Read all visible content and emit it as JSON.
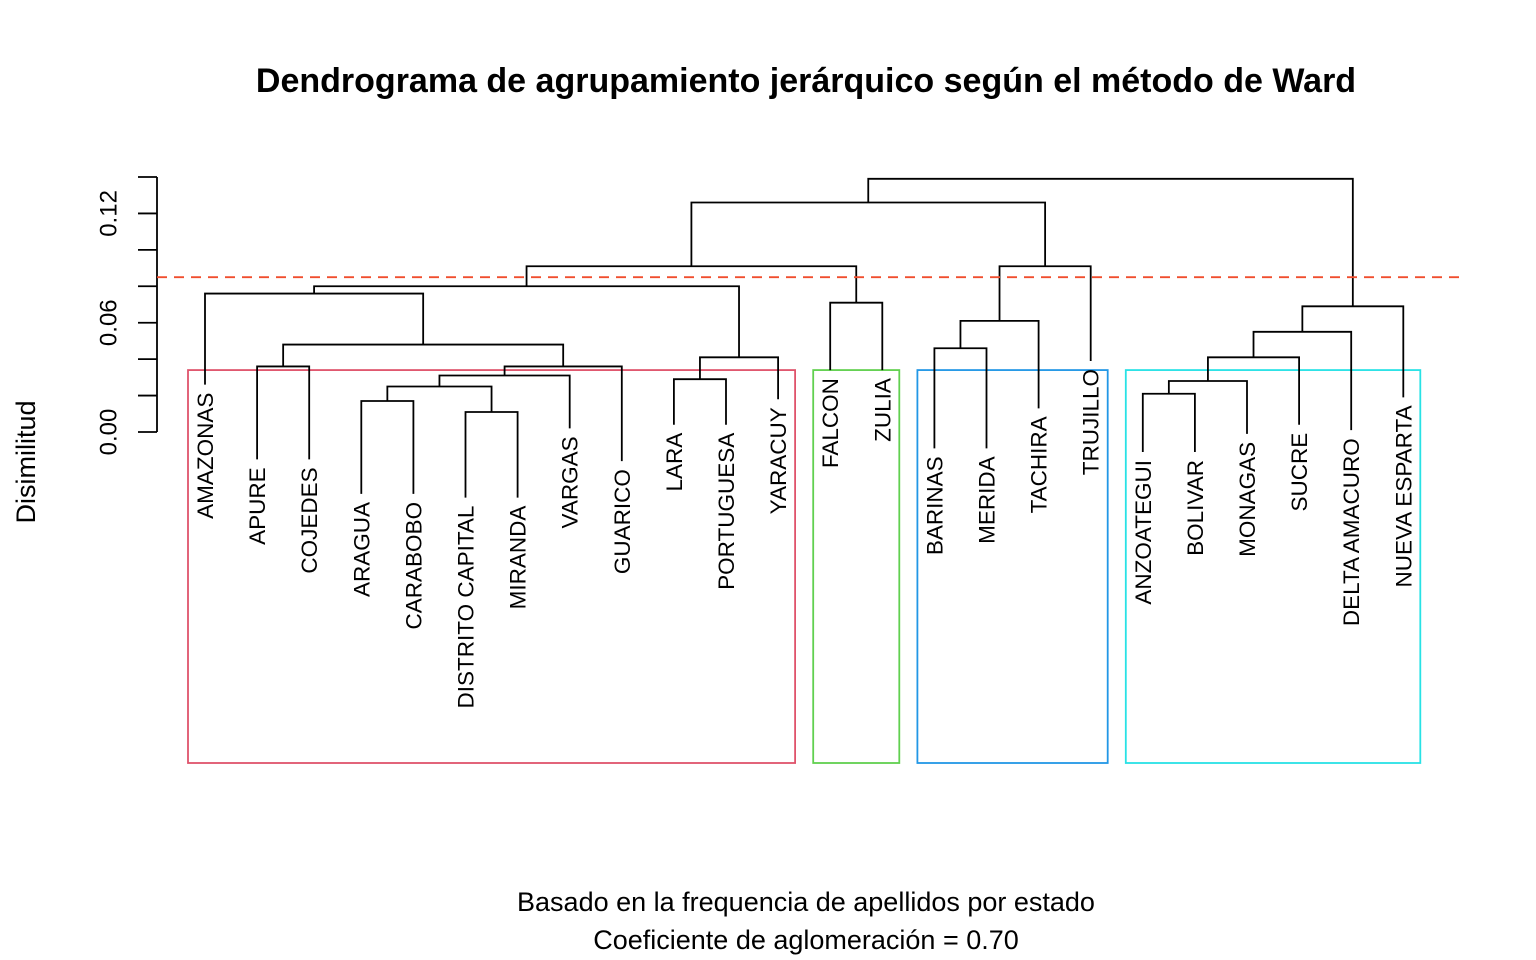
{
  "chart_data": {
    "type": "dendrogram",
    "title": "Dendrograma de agrupamiento jerárquico según el método de Ward",
    "subtitle_lines": [
      "Basado en la frequencia de apellidos por estado",
      "Coeficiente de aglomeración = 0.70"
    ],
    "ylabel": "Disimilitud",
    "yticks": [
      "0.00",
      "0.06",
      "0.12"
    ],
    "yticks_values": [
      0.0,
      0.06,
      0.12
    ],
    "ylim": [
      0,
      0.14
    ],
    "cut_height": 0.085,
    "cut_color": "#f04e2e",
    "leaves": [
      {
        "label": "AMAZONAS",
        "height": 0.026
      },
      {
        "label": "APURE",
        "height": -0.015
      },
      {
        "label": "COJEDES",
        "height": -0.015
      },
      {
        "label": "ARAGUA",
        "height": -0.034
      },
      {
        "label": "CARABOBO",
        "height": -0.034
      },
      {
        "label": "DISTRITO CAPITAL",
        "height": -0.036
      },
      {
        "label": "MIRANDA",
        "height": -0.036
      },
      {
        "label": "VARGAS",
        "height": 0.002
      },
      {
        "label": "GUARICO",
        "height": -0.016
      },
      {
        "label": "LARA",
        "height": 0.004
      },
      {
        "label": "PORTUGUESA",
        "height": 0.004
      },
      {
        "label": "YARACUY",
        "height": 0.018
      },
      {
        "label": "FALCON",
        "height": 0.034
      },
      {
        "label": "ZULIA",
        "height": 0.034
      },
      {
        "label": "BARINAS",
        "height": -0.009
      },
      {
        "label": "MERIDA",
        "height": -0.009
      },
      {
        "label": "TACHIRA",
        "height": 0.013
      },
      {
        "label": "TRUJILLO",
        "height": 0.039
      },
      {
        "label": "ANZOATEGUI",
        "height": -0.011
      },
      {
        "label": "BOLIVAR",
        "height": -0.011
      },
      {
        "label": "MONAGAS",
        "height": -0.001
      },
      {
        "label": "SUCRE",
        "height": 0.004
      },
      {
        "label": "DELTA AMACURO",
        "height": 0.001
      },
      {
        "label": "NUEVA ESPARTA",
        "height": 0.019
      }
    ],
    "merges": [
      {
        "left": -4,
        "right": -5,
        "height": 0.017
      },
      {
        "left": -6,
        "right": -7,
        "height": 0.011
      },
      {
        "left": 1,
        "right": 2,
        "height": 0.025
      },
      {
        "left": 3,
        "right": -8,
        "height": 0.031
      },
      {
        "left": 4,
        "right": -9,
        "height": 0.036
      },
      {
        "left": -2,
        "right": -3,
        "height": 0.036
      },
      {
        "left": 6,
        "right": 5,
        "height": 0.048
      },
      {
        "left": -10,
        "right": -11,
        "height": 0.029
      },
      {
        "left": 8,
        "right": -12,
        "height": 0.041
      },
      {
        "left": -1,
        "right": 7,
        "height": 0.076
      },
      {
        "left": 10,
        "right": 9,
        "height": 0.08
      },
      {
        "left": -13,
        "right": -14,
        "height": 0.071
      },
      {
        "left": 11,
        "right": 12,
        "height": 0.091
      },
      {
        "left": -15,
        "right": -16,
        "height": 0.046
      },
      {
        "left": 14,
        "right": -17,
        "height": 0.061
      },
      {
        "left": 15,
        "right": -18,
        "height": 0.091
      },
      {
        "left": 13,
        "right": 16,
        "height": 0.126
      },
      {
        "left": -19,
        "right": -20,
        "height": 0.021
      },
      {
        "left": 18,
        "right": -21,
        "height": 0.028
      },
      {
        "left": 19,
        "right": -22,
        "height": 0.041
      },
      {
        "left": 20,
        "right": -23,
        "height": 0.055
      },
      {
        "left": 21,
        "right": -24,
        "height": 0.069
      },
      {
        "left": 17,
        "right": 22,
        "height": 0.139
      }
    ],
    "clusters": [
      {
        "from": 1,
        "to": 12,
        "color": "#df536b"
      },
      {
        "from": 13,
        "to": 14,
        "color": "#61d04f"
      },
      {
        "from": 15,
        "to": 18,
        "color": "#2297e6"
      },
      {
        "from": 19,
        "to": 24,
        "color": "#28e2e5"
      }
    ]
  }
}
